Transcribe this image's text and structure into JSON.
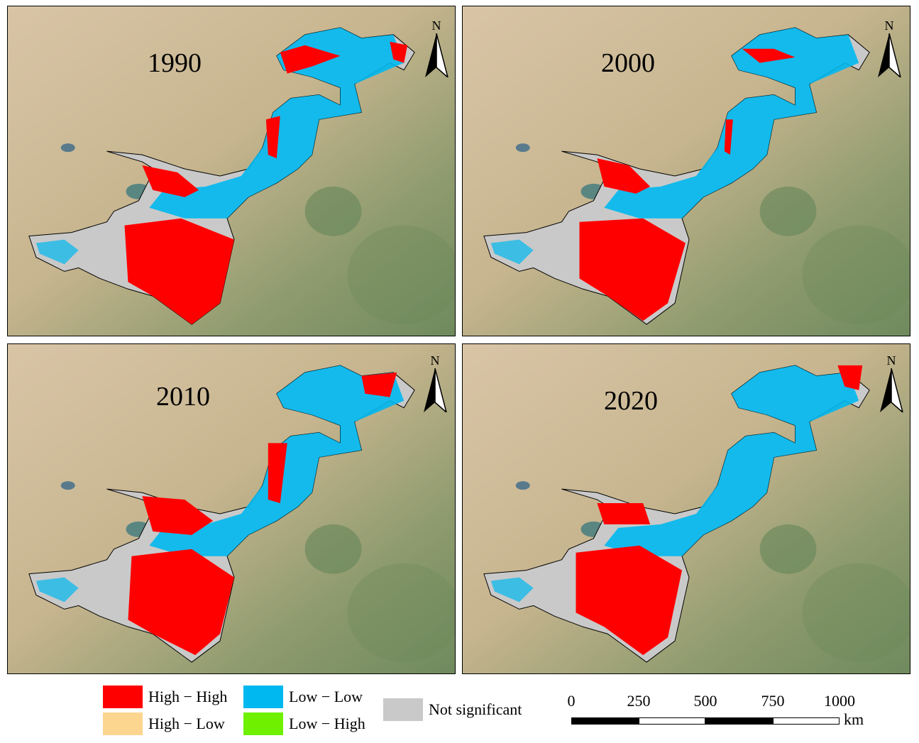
{
  "panels": [
    {
      "year": "1990",
      "north": "N"
    },
    {
      "year": "2000",
      "north": "N"
    },
    {
      "year": "2010",
      "north": "N"
    },
    {
      "year": "2020",
      "north": "N"
    }
  ],
  "legend": {
    "items": [
      {
        "label": "High − High",
        "color": "#ff0000"
      },
      {
        "label": "Low − Low",
        "color": "#00b8f0"
      },
      {
        "label": "High − Low",
        "color": "#fcd58e"
      },
      {
        "label": "Low − High",
        "color": "#6ef000"
      },
      {
        "label": "Not significant",
        "color": "#c9c9c9"
      }
    ]
  },
  "scalebar": {
    "ticks": [
      "0",
      "250",
      "500",
      "750",
      "1000"
    ],
    "unit": "km"
  },
  "colors": {
    "desert": "#d8c3a2",
    "vegetation": "#7f9467",
    "basin_outline": "#000000"
  }
}
